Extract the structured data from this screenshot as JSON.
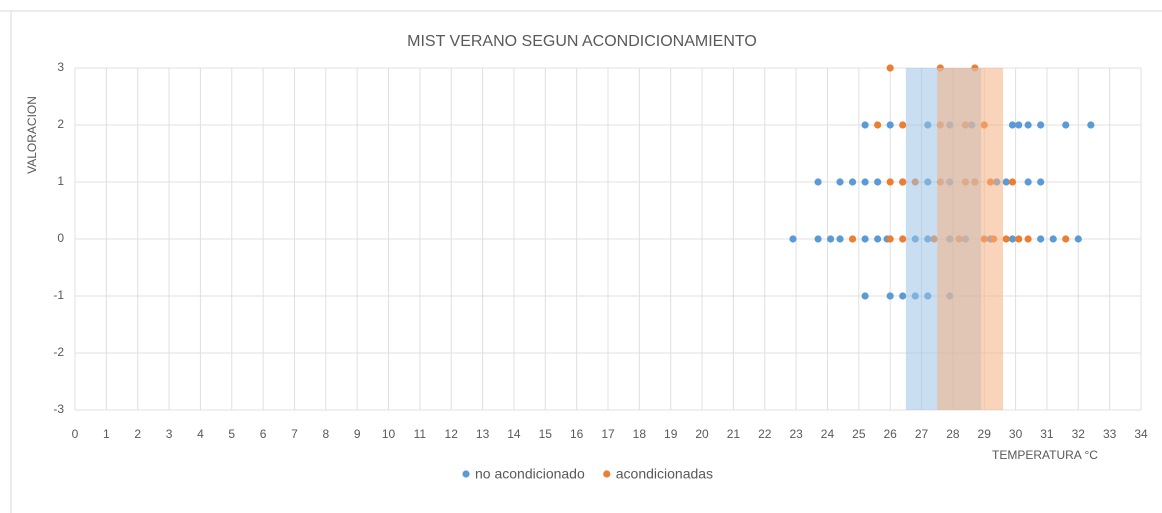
{
  "chart_data": {
    "type": "scatter",
    "title": "MIST VERANO SEGUN ACONDICIONAMIENTO",
    "x_label": "TEMPERATURA °C",
    "y_label": "VALORACION",
    "xlim": [
      0,
      34
    ],
    "ylim": [
      -3,
      3
    ],
    "xticks": [
      0,
      1,
      2,
      3,
      4,
      5,
      6,
      7,
      8,
      9,
      10,
      11,
      12,
      13,
      14,
      15,
      16,
      17,
      18,
      19,
      20,
      21,
      22,
      23,
      24,
      25,
      26,
      27,
      28,
      29,
      30,
      31,
      32,
      33,
      34
    ],
    "yticks": [
      -3,
      -2,
      -1,
      0,
      1,
      2,
      3
    ],
    "grid": true,
    "legend": "bottom",
    "series": [
      {
        "name": "no acondicionado",
        "color": "#5b9bd5",
        "x": [
          25.2,
          26.0,
          27.2,
          27.9,
          28.6,
          29.9,
          30.1,
          30.4,
          30.8,
          31.6,
          32.4,
          23.7,
          24.4,
          24.8,
          25.2,
          25.6,
          26.4,
          27.2,
          27.9,
          28.7,
          29.4,
          29.7,
          30.4,
          30.8,
          22.9,
          23.7,
          24.1,
          24.4,
          25.2,
          25.6,
          25.9,
          26.8,
          27.2,
          27.9,
          28.4,
          29.2,
          29.9,
          30.8,
          31.2,
          32.0,
          25.2,
          26.0,
          26.4,
          26.8,
          27.2,
          27.9
        ],
        "values": [
          2,
          2,
          2,
          2,
          2,
          2,
          2,
          2,
          2,
          2,
          2,
          1,
          1,
          1,
          1,
          1,
          1,
          1,
          1,
          1,
          1,
          1,
          1,
          1,
          0,
          0,
          0,
          0,
          0,
          0,
          0,
          0,
          0,
          0,
          0,
          0,
          0,
          0,
          0,
          0,
          -1,
          -1,
          -1,
          -1,
          -1,
          -1
        ]
      },
      {
        "name": "acondicionadas",
        "color": "#ed7d31",
        "x": [
          26.0,
          27.6,
          28.7,
          25.6,
          26.4,
          27.6,
          28.4,
          29.0,
          26.0,
          26.4,
          26.8,
          27.6,
          28.4,
          28.7,
          29.2,
          29.9,
          24.8,
          26.0,
          26.4,
          27.4,
          28.2,
          29.0,
          29.3,
          29.7,
          30.1,
          30.4,
          31.6
        ],
        "values": [
          3,
          3,
          3,
          2,
          2,
          2,
          2,
          2,
          1,
          1,
          1,
          1,
          1,
          1,
          1,
          1,
          0,
          0,
          0,
          0,
          0,
          0,
          0,
          0,
          0,
          0,
          0
        ]
      }
    ],
    "bands": [
      {
        "from": 26.5,
        "to": 28.9,
        "color": "#9dc3e6"
      },
      {
        "from": 27.5,
        "to": 29.6,
        "color": "#f4b183"
      }
    ]
  }
}
